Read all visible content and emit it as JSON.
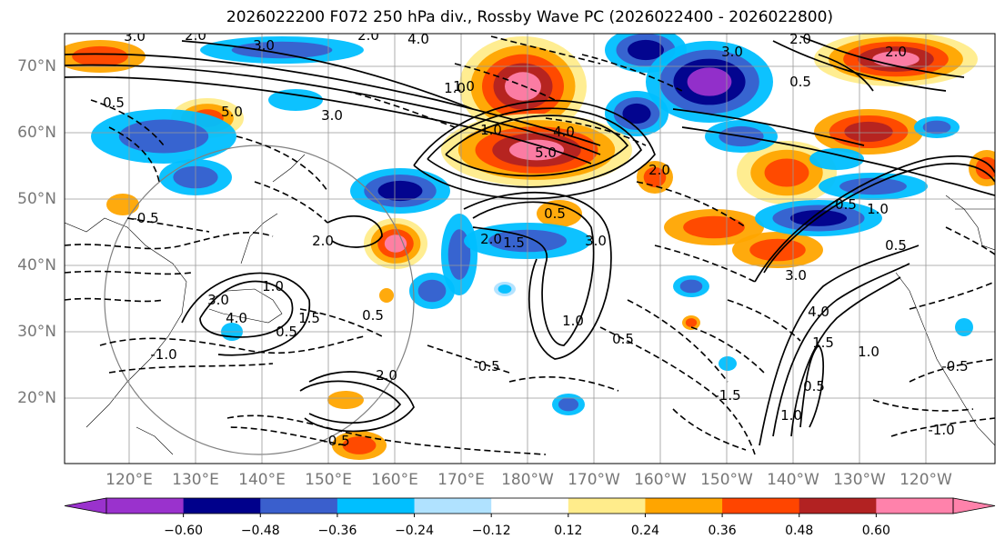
{
  "title": "2026022200 F072 250 hPa div., Rossby Wave PC (2026022400 - 2026022800)",
  "lat_labels": [
    "70°N",
    "60°N",
    "50°N",
    "40°N",
    "30°N",
    "20°N"
  ],
  "lon_labels": [
    "120°E",
    "130°E",
    "140°E",
    "150°E",
    "160°E",
    "170°E",
    "180°W",
    "170°W",
    "160°W",
    "150°W",
    "140°W",
    "130°W",
    "120°W"
  ],
  "colorbar": {
    "colors": [
      "#9a32cd",
      "#00008b",
      "#3a5fcd",
      "#00bfff",
      "#b0e2ff",
      "#ffffff",
      "#ffec8b",
      "#ffa500",
      "#ff4500",
      "#b22222",
      "#ff82ab"
    ],
    "ticks": [
      "−0.60",
      "−0.48",
      "−0.36",
      "−0.24",
      "−0.12",
      "0.12",
      "0.24",
      "0.36",
      "0.48",
      "0.60"
    ],
    "extend": "both"
  },
  "contour_labels": [
    "3.0",
    "2.0",
    "2.0",
    "4.0",
    "3.0",
    "2.0",
    "3.0",
    "2.0",
    "1.0",
    "0.5",
    "5.0",
    "3.0",
    "4.0",
    "5.0",
    "2.0",
    "1.0",
    "0.5",
    "3.0",
    "2.0",
    "4.0",
    "1.5",
    "1.0",
    "0.5",
    "3.0",
    "2.0",
    "1.5",
    "1.0",
    "0.5",
    "2.0",
    "1.0",
    "0.5",
    "4.0",
    "3.0",
    "1.5",
    "1.0",
    "0.5",
    "1.0",
    "0.5",
    "0.5",
    "1.0",
    "0.5",
    "-0.5",
    "-1.0",
    "-0.5",
    "-1.0",
    "-0.5",
    "-1.5",
    "-0.5"
  ]
}
